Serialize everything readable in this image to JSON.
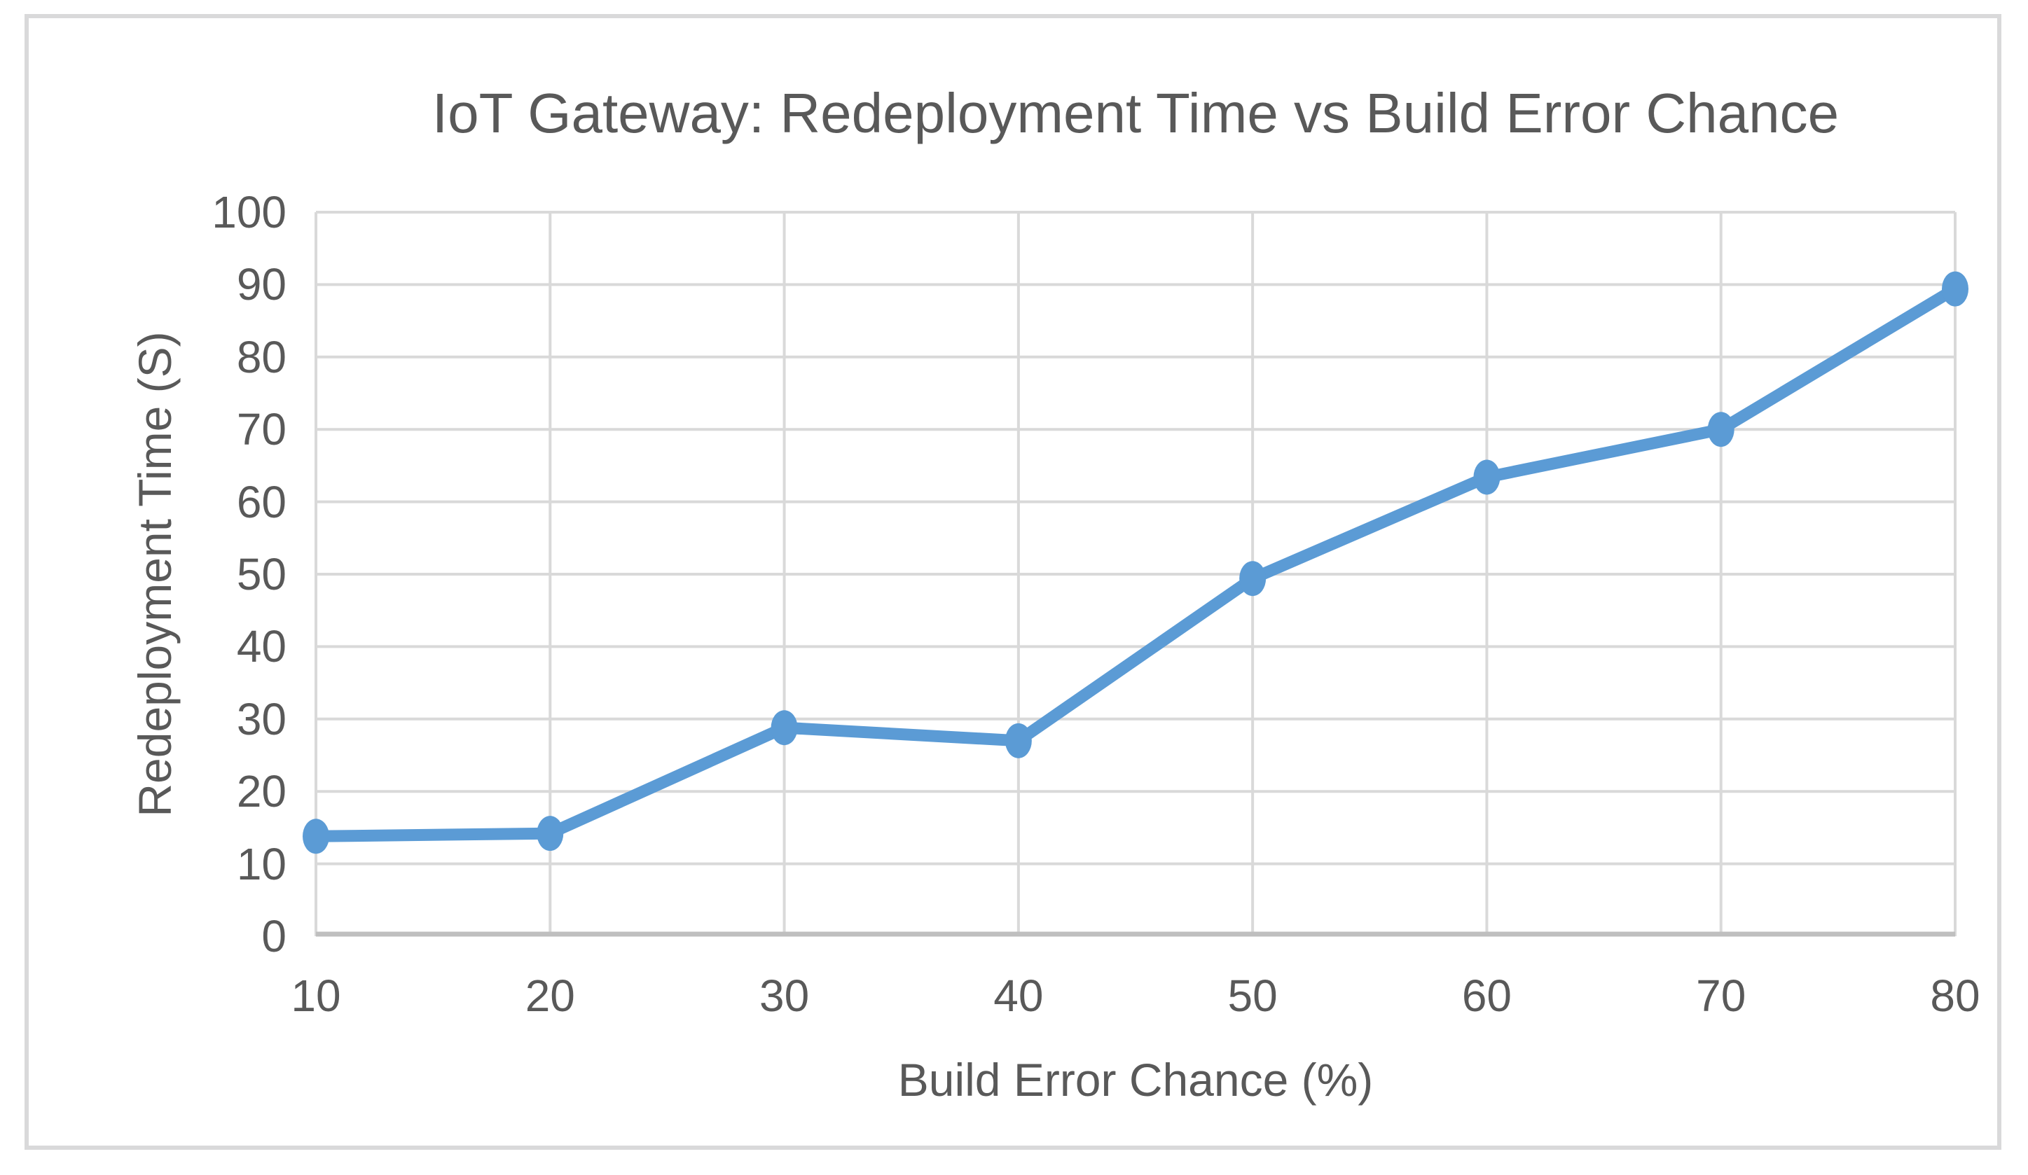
{
  "chart_data": {
    "type": "line",
    "title": "IoT Gateway: Redeployment Time vs Build Error Chance",
    "xlabel": "Build Error Chance (%)",
    "ylabel": "Redeployment Time (S)",
    "x": [
      10,
      20,
      30,
      40,
      50,
      60,
      70,
      80
    ],
    "series": [
      {
        "name": "Redeployment Time",
        "values": [
          13.8,
          14.2,
          28.8,
          27.0,
          49.4,
          63.4,
          70.0,
          89.4
        ]
      }
    ],
    "x_tick_labels": [
      "10",
      "20",
      "30",
      "40",
      "50",
      "60",
      "70",
      "80"
    ],
    "y_tick_labels": [
      "0",
      "10",
      "20",
      "30",
      "40",
      "50",
      "60",
      "70",
      "80",
      "90",
      "100"
    ],
    "xlim": [
      10,
      80
    ],
    "ylim": [
      0,
      100
    ],
    "grid": "on",
    "legend": "none"
  },
  "colors": {
    "series": "#5b9bd5",
    "gridline": "#d9d9d9",
    "axis_line": "#bfbfbf",
    "text": "#595959",
    "frame_border": "#d9d9da",
    "background": "#ffffff"
  }
}
